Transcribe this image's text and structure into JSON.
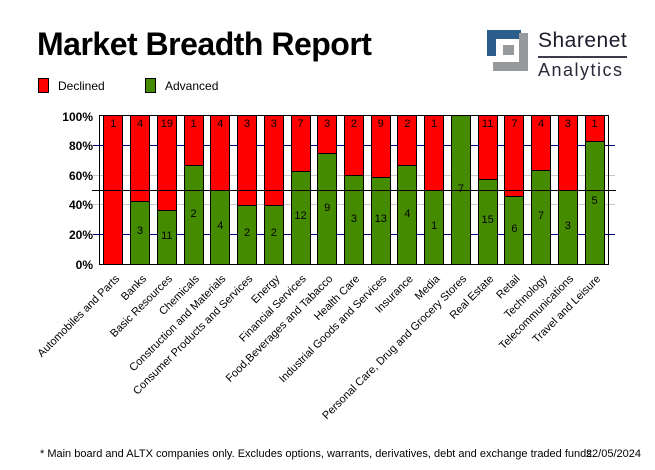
{
  "title": "Market Breadth Report",
  "logo": {
    "line1": "Sharenet",
    "line2": "Analytics",
    "mark_icon": "interlocked-s-mark",
    "mark_blue": "#2b5c8a",
    "mark_gray": "#97999d"
  },
  "legend": {
    "declined_label": "Declined",
    "advanced_label": "Advanced"
  },
  "colors": {
    "declined": "#ff0000",
    "advanced": "#458b00",
    "grid_navy": "#000080",
    "grid_gray": "#c9c9c9",
    "midline_black": "#000000"
  },
  "footer": {
    "note": "* Main board and ALTX companies only. Excludes options, warrants, derivatives, debt and exchange traded funds",
    "date": "22/05/2024"
  },
  "chart_data": {
    "type": "bar",
    "stacked": true,
    "stacking": "percent",
    "title": "Market Breadth Report",
    "xlabel": "",
    "ylabel": "",
    "ylim": [
      0,
      100
    ],
    "yticks": [
      "0%",
      "20%",
      "40%",
      "60%",
      "80%",
      "100%"
    ],
    "gridlines": {
      "navy_levels": [
        20,
        80
      ],
      "gray_levels": [
        40,
        60
      ],
      "black_levels": [
        50
      ]
    },
    "legend_position": "top-left",
    "categories": [
      "Automobiles and Parts",
      "Banks",
      "Basic Resources",
      "Chemicals",
      "Construction and Materials",
      "Consumer Products and Services",
      "Energy",
      "Financial Services",
      "Food,Beverages and Tabacco",
      "Health Care",
      "Industrial Goods and Services",
      "Insurance",
      "Media",
      "Personal Care, Drug and Grocery Stores",
      "Real Estate",
      "Retail",
      "Technology",
      "Telecommunications",
      "Travel and Leisure"
    ],
    "series": [
      {
        "name": "Declined",
        "color": "#ff0000",
        "values": [
          1,
          4,
          19,
          1,
          4,
          3,
          3,
          7,
          3,
          2,
          9,
          2,
          1,
          0,
          11,
          7,
          4,
          3,
          1
        ]
      },
      {
        "name": "Advanced",
        "color": "#458b00",
        "values": [
          0,
          3,
          11,
          2,
          4,
          2,
          2,
          12,
          9,
          3,
          13,
          4,
          1,
          7,
          15,
          6,
          7,
          3,
          5
        ]
      }
    ]
  }
}
